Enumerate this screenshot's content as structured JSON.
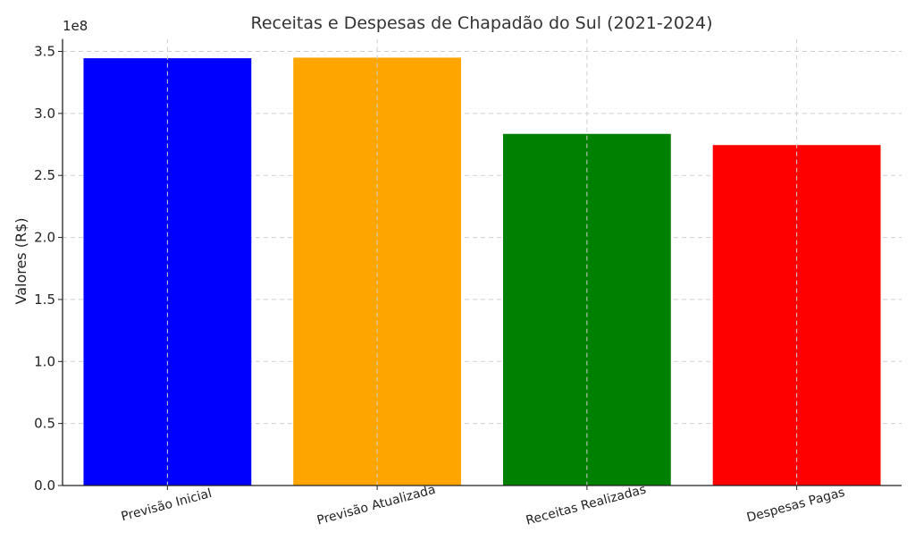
{
  "chart_data": {
    "type": "bar",
    "title": "Receitas e Despesas de Chapadão do Sul (2021-2024)",
    "xlabel": "",
    "ylabel": "Valores (R$)",
    "y_offset_label": "1e8",
    "categories": [
      "Previsão Inicial",
      "Previsão Atualizada",
      "Receitas Realizadas",
      "Despesas Pagas"
    ],
    "values": [
      344500000,
      345000000,
      283500000,
      274500000
    ],
    "bar_colors": [
      "#0000ff",
      "#ffa500",
      "#008000",
      "#ff0000"
    ],
    "ylim": [
      0,
      360000000
    ],
    "y_ticks": [
      0,
      50000000,
      100000000,
      150000000,
      200000000,
      250000000,
      300000000,
      350000000
    ],
    "y_tick_labels": [
      "0.0",
      "0.5",
      "1.0",
      "1.5",
      "2.0",
      "2.5",
      "3.0",
      "3.5"
    ],
    "grid": true,
    "x_tick_rotation_deg": 15
  }
}
